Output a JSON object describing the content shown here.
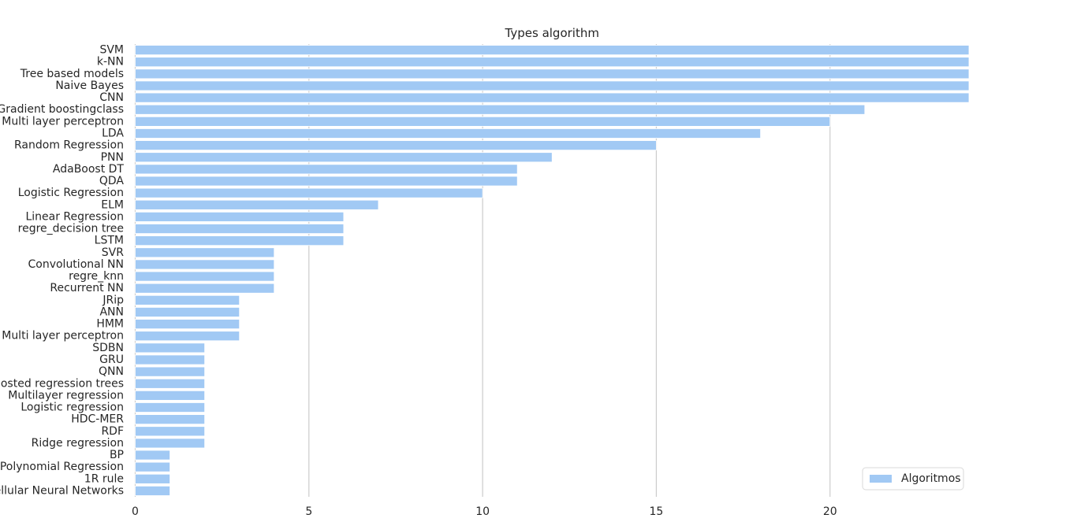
{
  "chart_data": {
    "type": "bar",
    "orientation": "horizontal",
    "title": "Types algorithm",
    "xlabel": "",
    "ylabel": "",
    "xlim": [
      0,
      24
    ],
    "xticks": [
      0,
      5,
      10,
      15,
      20
    ],
    "grid": "vertical",
    "legend_position": "bottom-right",
    "colors": {
      "bar": "#a1c9f4",
      "grid": "#cccccc",
      "text": "#262626"
    },
    "categories": [
      "SVM",
      "k-NN",
      "Tree based models",
      "Naive Bayes",
      "CNN",
      "Gradient boostingclass",
      "Multi layer perceptron",
      "LDA",
      "Random Regression",
      "PNN",
      "AdaBoost DT",
      "QDA",
      "Logistic Regression",
      "ELM",
      "Linear Regression",
      "regre_decision tree",
      "LSTM",
      "SVR",
      "Convolutional NN",
      "regre_knn",
      "Recurrent NN",
      "JRip",
      "ANN",
      "HMM",
      "Multi layer perceptron",
      "SDBN",
      "GRU",
      "QNN",
      "Boosted regression trees",
      "Multilayer regression",
      "Logistic regression",
      "HDC-MER",
      "RDF",
      "Ridge regression",
      "BP",
      "Polynomial Regression",
      "1R rule",
      "Cellular Neural Networks"
    ],
    "series": [
      {
        "name": "Algoritmos",
        "values": [
          24,
          24,
          24,
          24,
          24,
          21,
          20,
          18,
          15,
          12,
          11,
          11,
          10,
          7,
          6,
          6,
          6,
          4,
          4,
          4,
          4,
          3,
          3,
          3,
          3,
          2,
          2,
          2,
          2,
          2,
          2,
          2,
          2,
          2,
          1,
          1,
          1,
          1
        ]
      }
    ]
  }
}
